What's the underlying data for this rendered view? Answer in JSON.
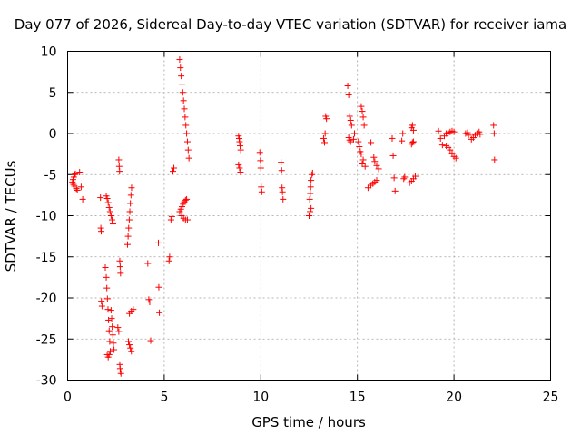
{
  "chart_data": {
    "type": "scatter",
    "title": "Day 077 of 2026, Sidereal Day-to-day VTEC variation (SDTVAR) for receiver iama",
    "xlabel": "GPS time / hours",
    "ylabel": "SDTVAR / TECUs",
    "xlim": [
      0,
      25
    ],
    "ylim": [
      -30,
      10
    ],
    "xticks": [
      0,
      5,
      10,
      15,
      20,
      25
    ],
    "yticks": [
      -30,
      -25,
      -20,
      -15,
      -10,
      -5,
      0,
      5,
      10
    ],
    "grid": true,
    "marker": "+",
    "color": "#ff0000",
    "series": [
      {
        "name": "SDTVAR",
        "points": [
          [
            0.25,
            -5.9
          ],
          [
            0.28,
            -5.6
          ],
          [
            0.32,
            -5.3
          ],
          [
            0.36,
            -5.0
          ],
          [
            0.4,
            -4.9
          ],
          [
            0.45,
            -6.7
          ],
          [
            0.5,
            -6.9
          ],
          [
            0.35,
            -6.4
          ],
          [
            0.3,
            -6.2
          ],
          [
            0.62,
            -4.7
          ],
          [
            0.7,
            -6.5
          ],
          [
            0.78,
            -8.0
          ],
          [
            1.7,
            -7.8
          ],
          [
            1.72,
            -11.5
          ],
          [
            1.74,
            -11.9
          ],
          [
            1.75,
            -20.4
          ],
          [
            1.78,
            -21.0
          ],
          [
            2.0,
            -7.6
          ],
          [
            2.05,
            -7.9
          ],
          [
            2.1,
            -8.4
          ],
          [
            2.15,
            -9.0
          ],
          [
            2.2,
            -9.5
          ],
          [
            2.25,
            -10.0
          ],
          [
            2.3,
            -10.5
          ],
          [
            2.35,
            -11.0
          ],
          [
            1.95,
            -16.3
          ],
          [
            2.0,
            -17.5
          ],
          [
            2.03,
            -18.8
          ],
          [
            2.06,
            -20.1
          ],
          [
            2.09,
            -21.4
          ],
          [
            2.12,
            -22.7
          ],
          [
            2.15,
            -24.0
          ],
          [
            2.18,
            -25.3
          ],
          [
            2.21,
            -26.5
          ],
          [
            2.05,
            -26.9
          ],
          [
            2.1,
            -27.2
          ],
          [
            2.15,
            -26.9
          ],
          [
            2.25,
            -21.5
          ],
          [
            2.28,
            -22.5
          ],
          [
            2.31,
            -23.5
          ],
          [
            2.34,
            -24.5
          ],
          [
            2.37,
            -25.5
          ],
          [
            2.4,
            -26.3
          ],
          [
            2.65,
            -3.2
          ],
          [
            2.67,
            -4.0
          ],
          [
            2.69,
            -4.6
          ],
          [
            2.7,
            -15.5
          ],
          [
            2.72,
            -16.2
          ],
          [
            2.74,
            -17.0
          ],
          [
            2.6,
            -23.6
          ],
          [
            2.65,
            -24.1
          ],
          [
            2.7,
            -28.1
          ],
          [
            2.72,
            -28.6
          ],
          [
            2.74,
            -29.0
          ],
          [
            2.76,
            -29.2
          ],
          [
            3.1,
            -13.5
          ],
          [
            3.13,
            -12.5
          ],
          [
            3.16,
            -11.5
          ],
          [
            3.19,
            -10.5
          ],
          [
            3.22,
            -9.5
          ],
          [
            3.25,
            -8.5
          ],
          [
            3.28,
            -7.5
          ],
          [
            3.31,
            -6.6
          ],
          [
            3.2,
            -21.9
          ],
          [
            3.3,
            -21.6
          ],
          [
            3.4,
            -21.4
          ],
          [
            3.15,
            -25.3
          ],
          [
            3.2,
            -25.7
          ],
          [
            3.25,
            -26.1
          ],
          [
            3.3,
            -26.5
          ],
          [
            4.15,
            -15.8
          ],
          [
            4.2,
            -20.2
          ],
          [
            4.25,
            -20.5
          ],
          [
            4.3,
            -25.2
          ],
          [
            4.7,
            -13.3
          ],
          [
            4.72,
            -18.7
          ],
          [
            4.75,
            -21.8
          ],
          [
            5.25,
            -15.5
          ],
          [
            5.28,
            -15.0
          ],
          [
            5.35,
            -10.5
          ],
          [
            5.4,
            -10.1
          ],
          [
            5.45,
            -4.6
          ],
          [
            5.5,
            -4.2
          ],
          [
            5.8,
            9.0
          ],
          [
            5.84,
            8.0
          ],
          [
            5.88,
            7.0
          ],
          [
            5.92,
            6.0
          ],
          [
            5.96,
            5.0
          ],
          [
            6.0,
            4.0
          ],
          [
            6.04,
            3.0
          ],
          [
            6.08,
            2.0
          ],
          [
            6.12,
            1.0
          ],
          [
            6.16,
            0.0
          ],
          [
            6.2,
            -1.0
          ],
          [
            6.24,
            -2.0
          ],
          [
            6.28,
            -3.0
          ],
          [
            5.8,
            -9.5
          ],
          [
            5.86,
            -9.2
          ],
          [
            5.92,
            -8.9
          ],
          [
            5.98,
            -8.6
          ],
          [
            6.04,
            -8.3
          ],
          [
            6.1,
            -8.1
          ],
          [
            6.16,
            -8.0
          ],
          [
            5.9,
            -10.0
          ],
          [
            6.0,
            -10.3
          ],
          [
            6.1,
            -10.5
          ],
          [
            6.2,
            -10.5
          ],
          [
            8.85,
            -0.3
          ],
          [
            8.88,
            -0.6
          ],
          [
            8.9,
            -1.0
          ],
          [
            8.93,
            -1.5
          ],
          [
            8.96,
            -2.0
          ],
          [
            8.85,
            -3.8
          ],
          [
            8.9,
            -4.2
          ],
          [
            8.95,
            -4.7
          ],
          [
            9.95,
            -2.3
          ],
          [
            9.98,
            -3.3
          ],
          [
            10.0,
            -4.2
          ],
          [
            10.02,
            -6.5
          ],
          [
            10.05,
            -7.1
          ],
          [
            11.05,
            -3.5
          ],
          [
            11.08,
            -4.5
          ],
          [
            11.1,
            -6.6
          ],
          [
            11.12,
            -7.1
          ],
          [
            11.15,
            -8.0
          ],
          [
            12.5,
            -10.0
          ],
          [
            12.55,
            -9.5
          ],
          [
            12.6,
            -9.1
          ],
          [
            12.65,
            -5.0
          ],
          [
            12.68,
            -4.8
          ],
          [
            12.6,
            -5.7
          ],
          [
            12.58,
            -6.5
          ],
          [
            12.56,
            -7.3
          ],
          [
            12.53,
            -8.0
          ],
          [
            13.3,
            -1.1
          ],
          [
            13.33,
            0.0
          ],
          [
            13.36,
            2.1
          ],
          [
            13.4,
            1.8
          ],
          [
            13.25,
            -0.6
          ],
          [
            14.5,
            5.8
          ],
          [
            14.55,
            4.7
          ],
          [
            14.6,
            2.1
          ],
          [
            14.65,
            1.6
          ],
          [
            14.7,
            1.0
          ],
          [
            14.55,
            -0.5
          ],
          [
            14.6,
            -0.8
          ],
          [
            14.65,
            -1.0
          ],
          [
            14.8,
            -0.7
          ],
          [
            14.85,
            0.0
          ],
          [
            15.2,
            3.3
          ],
          [
            15.25,
            2.7
          ],
          [
            15.3,
            2.0
          ],
          [
            15.35,
            1.0
          ],
          [
            15.05,
            -1.0
          ],
          [
            15.1,
            -1.6
          ],
          [
            15.15,
            -2.2
          ],
          [
            15.2,
            -2.5
          ],
          [
            15.25,
            -3.7
          ],
          [
            15.3,
            -3.2
          ],
          [
            15.4,
            -4.0
          ],
          [
            15.55,
            -6.6
          ],
          [
            15.7,
            -6.3
          ],
          [
            15.8,
            -6.1
          ],
          [
            15.9,
            -5.9
          ],
          [
            16.0,
            -5.7
          ],
          [
            15.7,
            -1.1
          ],
          [
            15.85,
            -2.9
          ],
          [
            15.9,
            -3.4
          ],
          [
            16.0,
            -3.9
          ],
          [
            16.1,
            -4.3
          ],
          [
            16.8,
            -0.6
          ],
          [
            16.85,
            -2.7
          ],
          [
            16.9,
            -5.4
          ],
          [
            16.95,
            -7.0
          ],
          [
            17.3,
            -0.9
          ],
          [
            17.35,
            0.0
          ],
          [
            17.4,
            -5.5
          ],
          [
            17.45,
            -5.3
          ],
          [
            17.7,
            -6.0
          ],
          [
            17.8,
            -5.8
          ],
          [
            17.9,
            -5.5
          ],
          [
            18.0,
            -5.2
          ],
          [
            17.8,
            -1.3
          ],
          [
            17.85,
            -1.1
          ],
          [
            17.9,
            -1.0
          ],
          [
            17.8,
            0.7
          ],
          [
            17.85,
            1.0
          ],
          [
            17.9,
            0.4
          ],
          [
            19.2,
            0.3
          ],
          [
            19.3,
            -0.6
          ],
          [
            19.4,
            -1.4
          ],
          [
            19.5,
            -0.3
          ],
          [
            19.6,
            0.0
          ],
          [
            19.7,
            0.1
          ],
          [
            19.8,
            0.2
          ],
          [
            19.9,
            0.3
          ],
          [
            20.0,
            0.2
          ],
          [
            19.6,
            -1.5
          ],
          [
            19.7,
            -1.7
          ],
          [
            19.8,
            -2.0
          ],
          [
            19.9,
            -2.4
          ],
          [
            20.0,
            -2.8
          ],
          [
            20.1,
            -3.0
          ],
          [
            20.6,
            0.0
          ],
          [
            20.7,
            0.1
          ],
          [
            20.75,
            -0.2
          ],
          [
            20.9,
            -0.7
          ],
          [
            21.0,
            -0.5
          ],
          [
            21.1,
            -0.2
          ],
          [
            21.2,
            0.0
          ],
          [
            21.3,
            0.2
          ],
          [
            21.35,
            -0.1
          ],
          [
            22.05,
            1.0
          ],
          [
            22.08,
            0.0
          ],
          [
            22.1,
            -3.2
          ]
        ]
      }
    ]
  }
}
